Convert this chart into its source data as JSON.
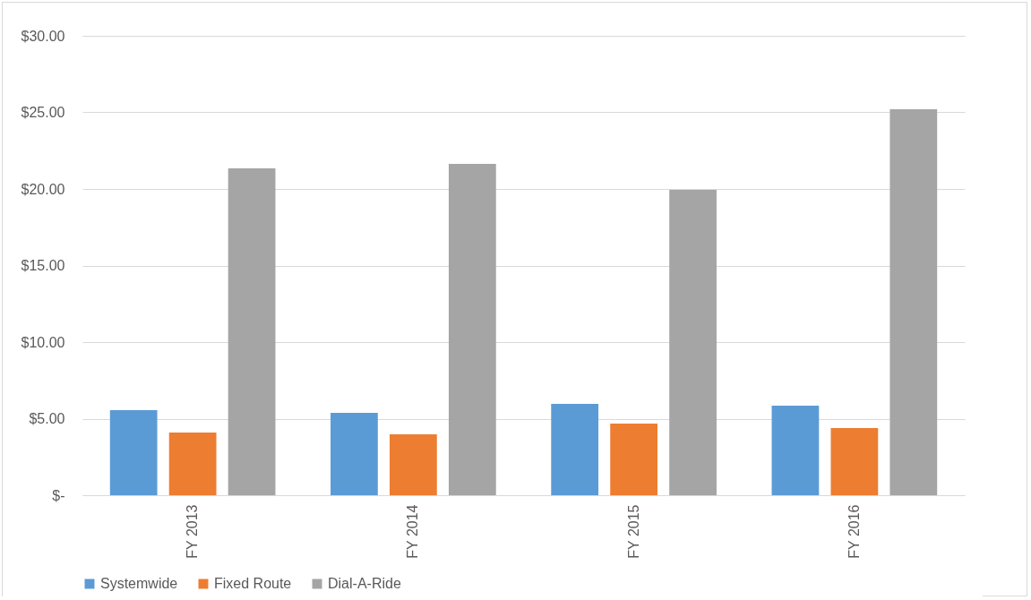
{
  "chart_data": {
    "type": "bar",
    "categories": [
      "FY 2013",
      "FY 2014",
      "FY 2015",
      "FY 2016"
    ],
    "series": [
      {
        "name": "Systemwide",
        "color": "#5b9bd5",
        "values": [
          5.56,
          5.38,
          5.96,
          5.85
        ]
      },
      {
        "name": "Fixed Route",
        "color": "#ed7d31",
        "values": [
          4.09,
          3.98,
          4.68,
          4.39
        ]
      },
      {
        "name": "Dial-A-Ride",
        "color": "#a5a5a5",
        "values": [
          21.35,
          21.64,
          19.94,
          25.2
        ]
      }
    ],
    "ylim": [
      0,
      30
    ],
    "yticks": [
      {
        "value": 0,
        "label": "$-"
      },
      {
        "value": 5,
        "label": "$5.00"
      },
      {
        "value": 10,
        "label": "$10.00"
      },
      {
        "value": 15,
        "label": "$15.00"
      },
      {
        "value": 20,
        "label": "$20.00"
      },
      {
        "value": 25,
        "label": "$25.00"
      },
      {
        "value": 30,
        "label": "$30.00"
      }
    ],
    "grid": "y",
    "legend": "bottom"
  }
}
